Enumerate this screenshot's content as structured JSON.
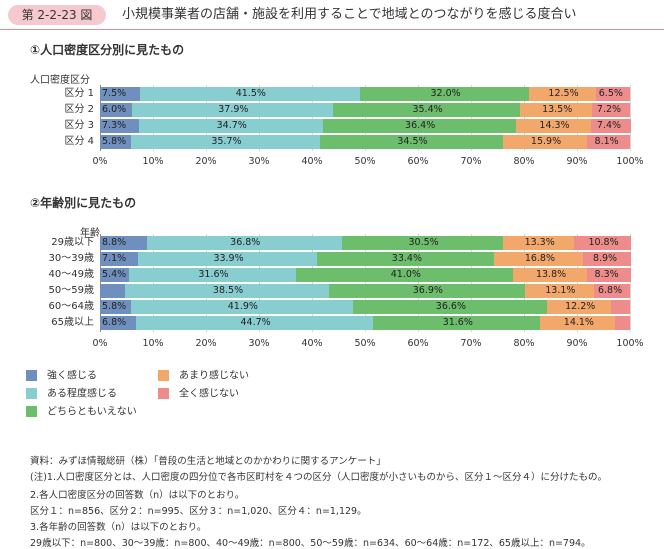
{
  "header": {
    "badge": "第 2-2-23 図",
    "title": "小規模事業者の店舗・施設を利用することで地域とのつながりを感じる度合い"
  },
  "colors": [
    "#6f8fbf",
    "#88cdcf",
    "#6cbd6c",
    "#f3a86b",
    "#ee8c8c"
  ],
  "legend": [
    "強く感じる",
    "ある程度感じる",
    "どちらともいえない",
    "あまり感じない",
    "全く感じない"
  ],
  "chart_data": [
    {
      "type": "bar",
      "orientation": "horizontal",
      "stacked": true,
      "title": "①人口密度区分別に見たもの",
      "category_title": "人口密度区分",
      "categories": [
        "区分 1",
        "区分 2",
        "区分 3",
        "区分 4"
      ],
      "xlim": [
        0,
        100
      ],
      "xticks": [
        "0%",
        "10%",
        "20%",
        "30%",
        "40%",
        "50%",
        "60%",
        "70%",
        "80%",
        "90%",
        "100%"
      ],
      "series": [
        {
          "name": "強く感じる",
          "values": [
            7.5,
            6.0,
            7.3,
            5.8
          ]
        },
        {
          "name": "ある程度感じる",
          "values": [
            41.5,
            37.9,
            34.7,
            35.7
          ]
        },
        {
          "name": "どちらともいえない",
          "values": [
            32.0,
            35.4,
            36.4,
            34.5
          ]
        },
        {
          "name": "あまり感じない",
          "values": [
            12.5,
            13.5,
            14.3,
            15.9
          ]
        },
        {
          "name": "全く感じない",
          "values": [
            6.5,
            7.2,
            7.4,
            8.1
          ]
        }
      ],
      "labels": [
        [
          "7.5%",
          "41.5%",
          "32.0%",
          "12.5%",
          "6.5%"
        ],
        [
          "6.0%",
          "37.9%",
          "35.4%",
          "13.5%",
          "7.2%"
        ],
        [
          "7.3%",
          "34.7%",
          "36.4%",
          "14.3%",
          "7.4%"
        ],
        [
          "5.8%",
          "35.7%",
          "34.5%",
          "15.9%",
          "8.1%"
        ]
      ]
    },
    {
      "type": "bar",
      "orientation": "horizontal",
      "stacked": true,
      "title": "②年齢別に見たもの",
      "category_title": "年齢",
      "categories": [
        "29歳以下",
        "30～39歳",
        "40～49歳",
        "50～59歳",
        "60～64歳",
        "65歳以上"
      ],
      "xlim": [
        0,
        100
      ],
      "xticks": [
        "0%",
        "10%",
        "20%",
        "30%",
        "40%",
        "50%",
        "60%",
        "70%",
        "80%",
        "90%",
        "100%"
      ],
      "series": [
        {
          "name": "強く感じる",
          "values": [
            8.8,
            7.1,
            5.4,
            4.7,
            5.8,
            6.8
          ]
        },
        {
          "name": "ある程度感じる",
          "values": [
            36.8,
            33.9,
            31.6,
            38.5,
            41.9,
            44.7
          ]
        },
        {
          "name": "どちらともいえない",
          "values": [
            30.5,
            33.4,
            41.0,
            36.9,
            36.6,
            31.6
          ]
        },
        {
          "name": "あまり感じない",
          "values": [
            13.3,
            16.8,
            13.8,
            13.1,
            12.2,
            14.1
          ]
        },
        {
          "name": "全く感じない",
          "values": [
            10.8,
            8.9,
            8.3,
            6.8,
            3.5,
            2.8
          ]
        }
      ],
      "labels": [
        [
          "8.8%",
          "36.8%",
          "30.5%",
          "13.3%",
          "10.8%"
        ],
        [
          "7.1%",
          "33.9%",
          "33.4%",
          "16.8%",
          "8.9%"
        ],
        [
          "5.4%",
          "31.6%",
          "41.0%",
          "13.8%",
          "8.3%"
        ],
        [
          "",
          "38.5%",
          "36.9%",
          "13.1%",
          "6.8%"
        ],
        [
          "5.8%",
          "41.9%",
          "36.6%",
          "12.2%",
          ""
        ],
        [
          "6.8%",
          "44.7%",
          "31.6%",
          "14.1%",
          ""
        ]
      ]
    }
  ],
  "notes": [
    "資料：みずほ情報総研（株）「普段の生活と地域とのかかわりに関するアンケート」",
    "(注)1.人口密度区分とは、人口密度の四分位で各市区町村を４つの区分（人口密度が小さいものから、区分１～区分４）に分けたもの。",
    "2.各人口密度区分の回答数（n）は以下のとおり。",
    "区分１：n=856、区分２：n=995、区分３：n=1,020、区分４：n=1,129。",
    "3.各年齢の回答数（n）は以下のとおり。",
    "29歳以下：n=800、30～39歳：n=800、40～49歳：n=800、50～59歳：n=634、60～64歳：n=172、65歳以上：n=794。"
  ]
}
